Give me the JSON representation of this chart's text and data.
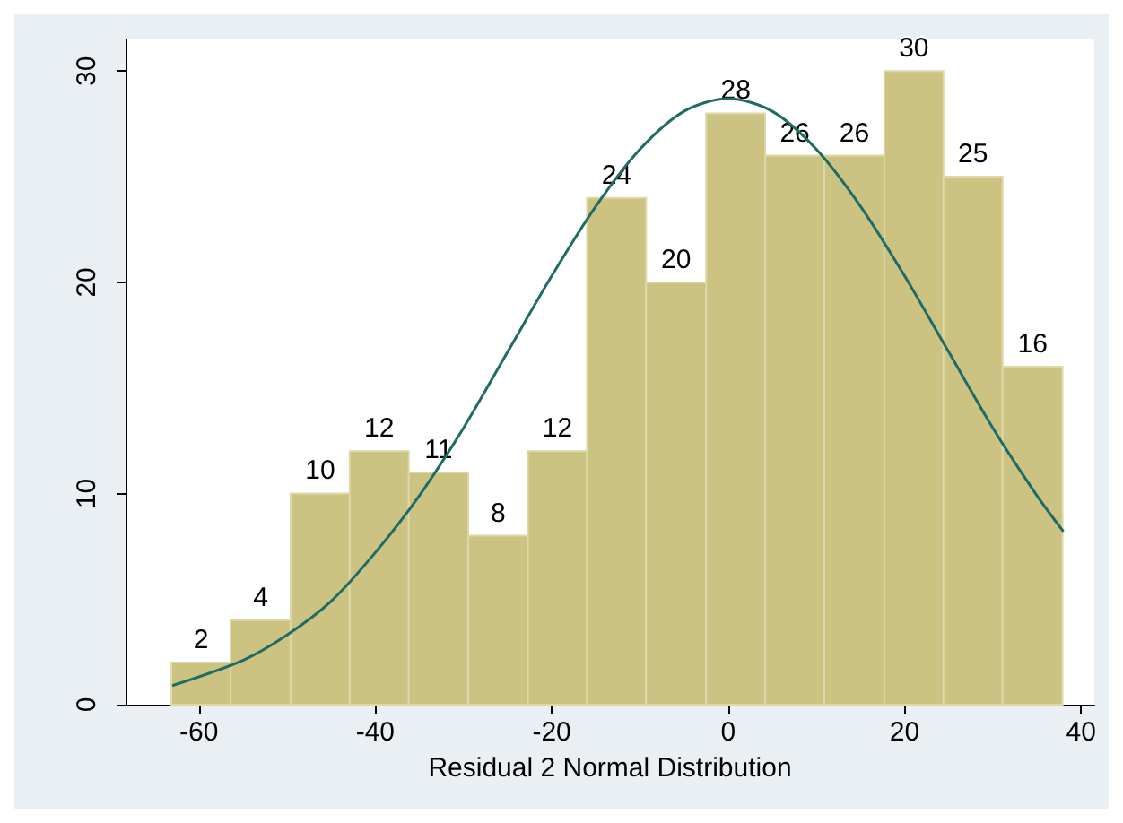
{
  "chart_data": {
    "type": "histogram",
    "xlabel": "Residual 2 Normal Distribution",
    "bins": [
      -63.1,
      -56.4,
      -49.6,
      -42.9,
      -36.2,
      -29.45,
      -22.7,
      -16.0,
      -9.3,
      -2.5,
      4.2,
      10.9,
      17.7,
      24.4,
      31.1,
      37.9
    ],
    "values": [
      2,
      4,
      10,
      12,
      11,
      8,
      12,
      24,
      20,
      28,
      26,
      26,
      30,
      25,
      16
    ],
    "color": "#ccc382",
    "value_labels": [
      "2",
      "4",
      "10",
      "12",
      "11",
      "8",
      "12",
      "24",
      "20",
      "28",
      "26",
      "26",
      "30",
      "25",
      "16"
    ],
    "series": [
      {
        "type": "line",
        "color": "#1f6b66",
        "x": [
          -63,
          -55,
          -50,
          -45,
          -40,
          -35,
          -30,
          -25,
          -20,
          -15,
          -10,
          -5,
          0,
          5,
          10,
          15,
          20,
          25,
          30,
          35,
          38
        ],
        "values": [
          0.9,
          2.1,
          3.3,
          4.9,
          7.2,
          9.9,
          13.1,
          16.7,
          20.3,
          23.6,
          26.3,
          28.1,
          28.7,
          28.1,
          26.3,
          23.6,
          20.3,
          16.7,
          13.1,
          9.9,
          8.2
        ]
      }
    ],
    "xlim": [
      -68.3,
      41.5
    ],
    "xticks": [
      -60,
      -40,
      -20,
      0,
      20,
      40
    ],
    "ylim": [
      0,
      31.5
    ],
    "yticks": [
      0,
      10,
      20,
      30
    ],
    "grid": false,
    "legend": false
  }
}
